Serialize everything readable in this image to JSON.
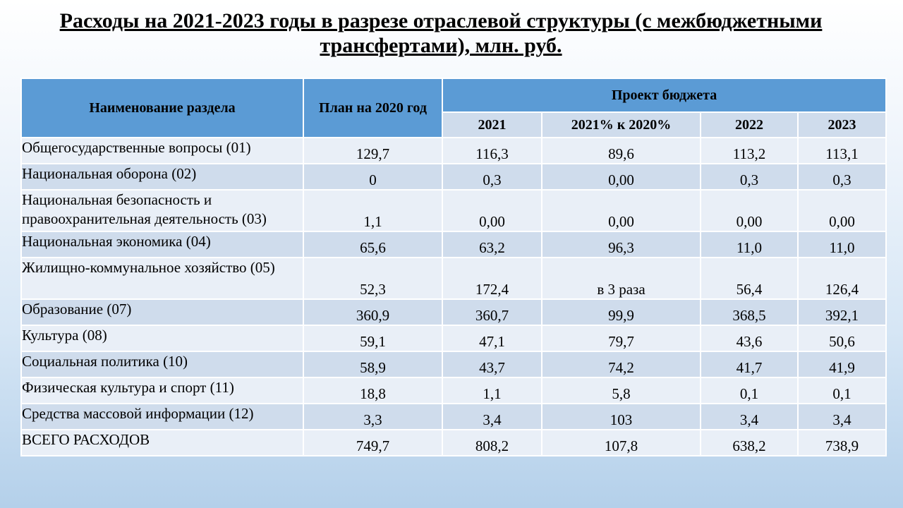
{
  "title": "Расходы на 2021-2023 годы в разрезе отраслевой структуры (с межбюджетными трансфертами), млн. руб.",
  "table": {
    "headers": {
      "name": "Наименование раздела",
      "plan": "План на 2020 год",
      "project": "Проект бюджета",
      "y2021": "2021",
      "pct": "2021% к 2020%",
      "y2022": "2022",
      "y2023": "2023"
    },
    "rows": [
      {
        "name": "Общегосударственные вопросы (01)",
        "plan": "129,7",
        "y2021": "116,3",
        "pct": "89,6",
        "y2022": "113,2",
        "y2023": "113,1"
      },
      {
        "name": "Национальная оборона (02)",
        "plan": "0",
        "y2021": "0,3",
        "pct": "0,00",
        "y2022": "0,3",
        "y2023": "0,3"
      },
      {
        "name": "Национальная безопасность и правоохранительная деятельность (03)",
        "plan": "1,1",
        "y2021": "0,00",
        "pct": "0,00",
        "y2022": "0,00",
        "y2023": "0,00"
      },
      {
        "name": "Национальная экономика (04)",
        "plan": "65,6",
        "y2021": "63,2",
        "pct": "96,3",
        "y2022": "11,0",
        "y2023": "11,0"
      },
      {
        "name": "Жилищно-коммунальное хозяйство (05)",
        "plan": "52,3",
        "y2021": "172,4",
        "pct": "в 3 раза",
        "y2022": "56,4",
        "y2023": "126,4"
      },
      {
        "name": "Образование (07)",
        "plan": "360,9",
        "y2021": "360,7",
        "pct": "99,9",
        "y2022": "368,5",
        "y2023": "392,1"
      },
      {
        "name": "Культура (08)",
        "plan": "59,1",
        "y2021": "47,1",
        "pct": "79,7",
        "y2022": "43,6",
        "y2023": "50,6"
      },
      {
        "name": "Социальная политика (10)",
        "plan": "58,9",
        "y2021": "43,7",
        "pct": "74,2",
        "y2022": "41,7",
        "y2023": "41,9"
      },
      {
        "name": "Физическая культура и спорт (11)",
        "plan": "18,8",
        "y2021": "1,1",
        "pct": "5,8",
        "y2022": "0,1",
        "y2023": "0,1"
      },
      {
        "name": "Средства массовой информации (12)",
        "plan": "3,3",
        "y2021": "3,4",
        "pct": "103",
        "y2022": "3,4",
        "y2023": "3,4"
      },
      {
        "name": "ВСЕГО РАСХОДОВ",
        "plan": "749,7",
        "y2021": "808,2",
        "pct": "107,8",
        "y2022": "638,2",
        "y2023": "738,9"
      }
    ]
  },
  "colors": {
    "header": "#5b9bd5",
    "row_light": "#e9eff7",
    "row_dark": "#cfdcec"
  }
}
